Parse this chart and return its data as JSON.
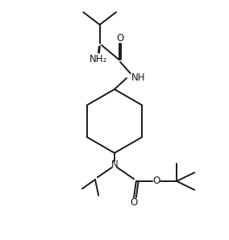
{
  "bg_color": "#ffffff",
  "line_color": "#1a1a1a",
  "line_width": 1.4,
  "font_size": 8.5,
  "figsize": [
    2.84,
    2.98
  ],
  "dpi": 100,
  "xlim": [
    0,
    10
  ],
  "ylim": [
    0,
    10.5
  ]
}
